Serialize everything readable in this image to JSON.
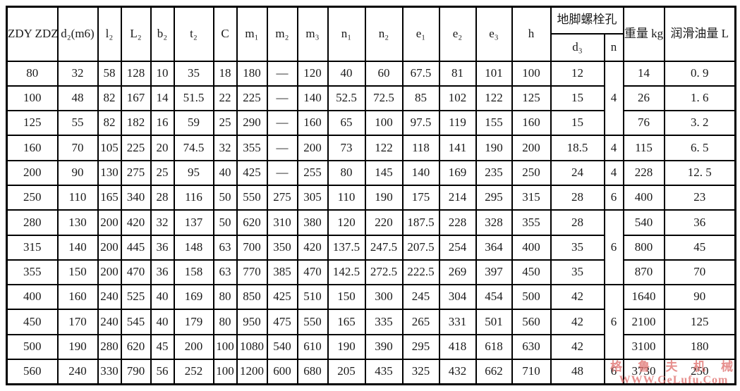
{
  "table": {
    "header": {
      "model": "ZDY ZDZ",
      "d2": "d₂(m6)",
      "l2": "l₂",
      "L2": "L₂",
      "b2": "b₂",
      "t2": "t₂",
      "C": "C",
      "m1": "m₁",
      "m2": "m₂",
      "m3": "m₃",
      "n1": "n₁",
      "n2": "n₂",
      "e1": "e₁",
      "e2": "e₂",
      "e3": "e₃",
      "h": "h",
      "anchor_bolt_group": "地脚螺栓孔",
      "d3": "d₃",
      "n": "n",
      "weight": "重量 kg",
      "oil": "润滑油量 L"
    },
    "rows": [
      {
        "cells": [
          "80",
          "32",
          "58",
          "128",
          "10",
          "35",
          "18",
          "180",
          "—",
          "120",
          "40",
          "60",
          "67.5",
          "81",
          "101",
          "100",
          "12"
        ],
        "n": "4",
        "n_rowspan": 3,
        "weight": "14",
        "oil": "0. 9"
      },
      {
        "cells": [
          "100",
          "48",
          "82",
          "167",
          "14",
          "51.5",
          "22",
          "225",
          "—",
          "140",
          "52.5",
          "72.5",
          "85",
          "102",
          "122",
          "125",
          "15"
        ],
        "weight": "26",
        "oil": "1. 6"
      },
      {
        "cells": [
          "125",
          "55",
          "82",
          "182",
          "16",
          "59",
          "25",
          "290",
          "—",
          "160",
          "65",
          "100",
          "97.5",
          "119",
          "155",
          "160",
          "15"
        ],
        "weight": "76",
        "oil": "3. 2"
      },
      {
        "cells": [
          "160",
          "70",
          "105",
          "225",
          "20",
          "74.5",
          "32",
          "355",
          "—",
          "200",
          "73",
          "122",
          "118",
          "141",
          "190",
          "200",
          "18.5"
        ],
        "n": "4",
        "n_rowspan": 1,
        "weight": "115",
        "oil": "6. 5"
      },
      {
        "cells": [
          "200",
          "90",
          "130",
          "275",
          "25",
          "95",
          "40",
          "425",
          "—",
          "255",
          "80",
          "145",
          "140",
          "169",
          "235",
          "250",
          "24"
        ],
        "n": "4",
        "n_rowspan": 1,
        "weight": "228",
        "oil": "12. 5"
      },
      {
        "cells": [
          "250",
          "110",
          "165",
          "340",
          "28",
          "116",
          "50",
          "550",
          "275",
          "305",
          "110",
          "190",
          "175",
          "214",
          "295",
          "315",
          "28"
        ],
        "n": "6",
        "n_rowspan": 1,
        "weight": "400",
        "oil": "23"
      },
      {
        "cells": [
          "280",
          "130",
          "200",
          "420",
          "32",
          "137",
          "50",
          "620",
          "310",
          "380",
          "120",
          "220",
          "187.5",
          "228",
          "328",
          "355",
          "28"
        ],
        "n": "6",
        "n_rowspan": 3,
        "weight": "540",
        "oil": "36"
      },
      {
        "cells": [
          "315",
          "140",
          "200",
          "445",
          "36",
          "148",
          "63",
          "700",
          "350",
          "420",
          "137.5",
          "247.5",
          "207.5",
          "254",
          "364",
          "400",
          "35"
        ],
        "weight": "800",
        "oil": "45"
      },
      {
        "cells": [
          "355",
          "150",
          "200",
          "470",
          "36",
          "158",
          "63",
          "770",
          "385",
          "470",
          "142.5",
          "272.5",
          "222.5",
          "269",
          "397",
          "450",
          "35"
        ],
        "weight": "870",
        "oil": "70"
      },
      {
        "cells": [
          "400",
          "160",
          "240",
          "525",
          "40",
          "169",
          "80",
          "850",
          "425",
          "510",
          "150",
          "300",
          "245",
          "304",
          "454",
          "500",
          "42"
        ],
        "n": "6",
        "n_rowspan": 3,
        "weight": "1640",
        "oil": "90"
      },
      {
        "cells": [
          "450",
          "170",
          "240",
          "545",
          "40",
          "179",
          "80",
          "950",
          "475",
          "550",
          "165",
          "335",
          "265",
          "331",
          "501",
          "560",
          "42"
        ],
        "weight": "2100",
        "oil": "125"
      },
      {
        "cells": [
          "500",
          "190",
          "280",
          "620",
          "45",
          "200",
          "100",
          "1080",
          "540",
          "610",
          "190",
          "390",
          "295",
          "418",
          "618",
          "630",
          "42"
        ],
        "weight": "3100",
        "oil": "180"
      },
      {
        "cells": [
          "560",
          "240",
          "330",
          "790",
          "56",
          "252",
          "100",
          "1200",
          "600",
          "680",
          "205",
          "435",
          "325",
          "432",
          "662",
          "710",
          "48"
        ],
        "n": "6",
        "n_rowspan": 1,
        "weight": "3730",
        "oil": "250"
      }
    ]
  },
  "watermark": {
    "line1": "格 鲁 夫 机 械",
    "line2": "WWW.GeLufu.Com",
    "color": "#e0706e"
  }
}
